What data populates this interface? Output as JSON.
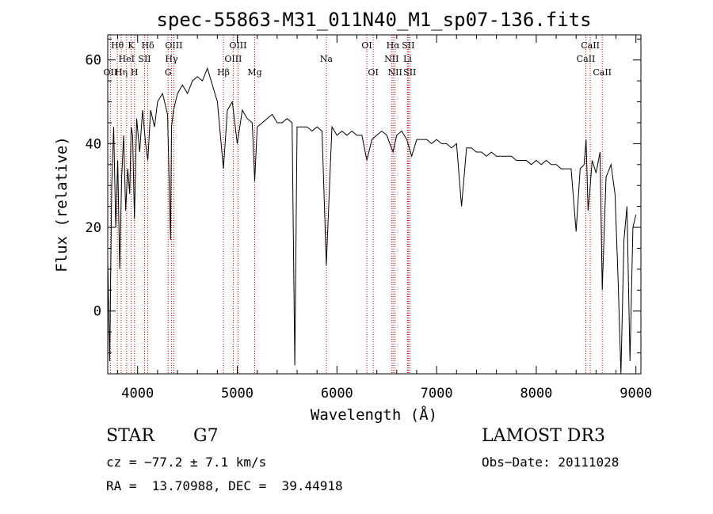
{
  "chart_data": {
    "type": "line",
    "title": "spec-55863-M31_011N40_M1_sp07-136.fits",
    "xlabel": "Wavelength (Å)",
    "ylabel": "Flux (relative)",
    "xlim": [
      3700,
      9050
    ],
    "ylim": [
      -15,
      66
    ],
    "xticks": [
      4000,
      5000,
      6000,
      7000,
      8000,
      9000
    ],
    "yticks": [
      0,
      20,
      40,
      60
    ],
    "series": [
      {
        "name": "flux",
        "x": [
          3700,
          3720,
          3740,
          3760,
          3780,
          3800,
          3820,
          3840,
          3860,
          3880,
          3900,
          3920,
          3935,
          3950,
          3968,
          3990,
          4020,
          4050,
          4080,
          4102,
          4130,
          4170,
          4200,
          4250,
          4300,
          4330,
          4340,
          4360,
          4400,
          4450,
          4500,
          4550,
          4600,
          4650,
          4700,
          4750,
          4800,
          4861,
          4900,
          4950,
          5000,
          5050,
          5100,
          5150,
          5175,
          5200,
          5250,
          5300,
          5350,
          5400,
          5450,
          5500,
          5550,
          5577,
          5600,
          5650,
          5700,
          5750,
          5800,
          5850,
          5893,
          5950,
          6000,
          6050,
          6100,
          6150,
          6200,
          6250,
          6300,
          6350,
          6400,
          6450,
          6500,
          6563,
          6600,
          6650,
          6700,
          6750,
          6800,
          6850,
          6900,
          6950,
          7000,
          7050,
          7100,
          7150,
          7200,
          7250,
          7300,
          7350,
          7400,
          7450,
          7500,
          7550,
          7600,
          7650,
          7700,
          7750,
          7800,
          7850,
          7900,
          7950,
          8000,
          8050,
          8100,
          8150,
          8200,
          8250,
          8300,
          8350,
          8400,
          8440,
          8480,
          8500,
          8520,
          8542,
          8560,
          8600,
          8640,
          8662,
          8700,
          8750,
          8790,
          8820,
          8850,
          8880,
          8910,
          8940,
          8970,
          9000
        ],
        "values": [
          12,
          -12,
          30,
          44,
          20,
          36,
          10,
          32,
          42,
          24,
          34,
          28,
          44,
          42,
          22,
          46,
          38,
          48,
          40,
          36,
          48,
          44,
          50,
          52,
          47,
          17,
          44,
          48,
          52,
          54,
          52,
          55,
          56,
          55,
          58,
          54,
          50,
          34,
          48,
          50,
          40,
          48,
          46,
          45,
          31,
          44,
          45,
          46,
          47,
          45,
          45,
          46,
          45,
          -13,
          44,
          44,
          44,
          43,
          44,
          43,
          11,
          44,
          42,
          43,
          42,
          43,
          42,
          42,
          36,
          41,
          42,
          43,
          42,
          38,
          42,
          43,
          41,
          37,
          41,
          41,
          41,
          40,
          41,
          40,
          40,
          39,
          40,
          25,
          39,
          39,
          38,
          38,
          37,
          38,
          37,
          37,
          37,
          37,
          36,
          36,
          36,
          35,
          36,
          35,
          36,
          35,
          35,
          34,
          34,
          34,
          19,
          34,
          35,
          41,
          24,
          30,
          36,
          33,
          38,
          5,
          32,
          35,
          28,
          8,
          -15,
          17,
          25,
          -12,
          20,
          23
        ]
      }
    ],
    "lines": [
      {
        "label": "Hθ",
        "x": 3797,
        "row": 1
      },
      {
        "label": "OII",
        "x": 3727,
        "row": 3
      },
      {
        "label": "HeI",
        "x": 3889,
        "row": 2
      },
      {
        "label": "Hη",
        "x": 3835,
        "row": 3
      },
      {
        "label": "K",
        "x": 3934,
        "row": 1
      },
      {
        "label": "H",
        "x": 3968,
        "row": 3
      },
      {
        "label": "SII",
        "x": 4070,
        "row": 2
      },
      {
        "label": "Hδ",
        "x": 4102,
        "row": 1
      },
      {
        "label": "OIII",
        "x": 4363,
        "row": 1
      },
      {
        "label": "Hγ",
        "x": 4340,
        "row": 2
      },
      {
        "label": "G",
        "x": 4306,
        "row": 3
      },
      {
        "label": "Hβ",
        "x": 4861,
        "row": 3
      },
      {
        "label": "OIII",
        "x": 5007,
        "row": 1
      },
      {
        "label": "OIII",
        "x": 4959,
        "row": 2
      },
      {
        "label": "Mg",
        "x": 5175,
        "row": 3
      },
      {
        "label": "Na",
        "x": 5893,
        "row": 2
      },
      {
        "label": "OI",
        "x": 6300,
        "row": 1
      },
      {
        "label": "OI",
        "x": 6364,
        "row": 3
      },
      {
        "label": "Hα",
        "x": 6563,
        "row": 1
      },
      {
        "label": "NII",
        "x": 6548,
        "row": 2
      },
      {
        "label": "NII",
        "x": 6583,
        "row": 3
      },
      {
        "label": "SII",
        "x": 6716,
        "row": 1
      },
      {
        "label": "Li",
        "x": 6708,
        "row": 2
      },
      {
        "label": "SII",
        "x": 6731,
        "row": 3
      },
      {
        "label": "CaII",
        "x": 8542,
        "row": 1
      },
      {
        "label": "CaII",
        "x": 8498,
        "row": 2
      },
      {
        "label": "CaII",
        "x": 8662,
        "row": 3
      }
    ]
  },
  "info": {
    "class_label": "STAR",
    "subclass": "G7",
    "survey": "LAMOST DR3",
    "redshift_line": "cz = −77.2 ± 7.1 km/s",
    "obs_date": "Obs−Date: 20111028",
    "coords": "RA =  13.70988, DEC =  39.44918"
  },
  "colors": {
    "spectrum": "#000000",
    "line_marker": "#cc0000",
    "axes": "#000000"
  }
}
